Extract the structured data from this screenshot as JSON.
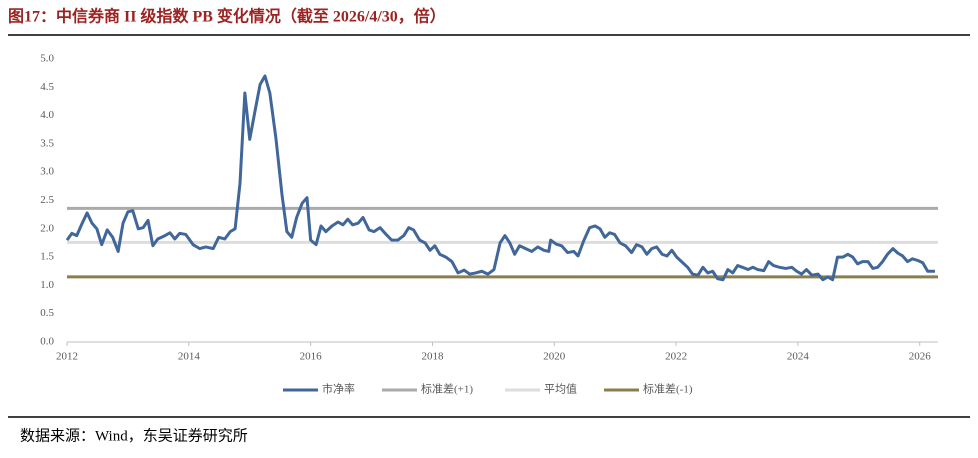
{
  "chart_data": {
    "type": "line",
    "title": "图17：中信券商 II 级指数 PB 变化情况（截至 2026/4/30，倍）",
    "xlim": [
      2012,
      2026.3
    ],
    "xticks": [
      2012,
      2014,
      2016,
      2018,
      2020,
      2022,
      2024,
      2026
    ],
    "ylim": [
      0,
      5
    ],
    "yticks": [
      {
        "value": 0,
        "label": "0.0"
      },
      {
        "value": 0.5,
        "label": "0.5"
      },
      {
        "value": 1,
        "label": "1.0"
      },
      {
        "value": 1.5,
        "label": "1.5"
      },
      {
        "value": 2,
        "label": "2.0"
      },
      {
        "value": 2.5,
        "label": "2.5"
      },
      {
        "value": 3,
        "label": "3.0"
      },
      {
        "value": 3.5,
        "label": "3.5"
      },
      {
        "value": 4,
        "label": "4.0"
      },
      {
        "value": 4.5,
        "label": "4.5"
      },
      {
        "value": 5,
        "label": "5.0"
      }
    ],
    "grid": false,
    "series": [
      {
        "name": "市净率",
        "color": "#41679a",
        "x": [
          2012.0,
          2012.08,
          2012.16,
          2012.25,
          2012.33,
          2012.41,
          2012.49,
          2012.57,
          2012.66,
          2012.75,
          2012.84,
          2012.92,
          2013.0,
          2013.08,
          2013.17,
          2013.25,
          2013.33,
          2013.41,
          2013.49,
          2013.61,
          2013.69,
          2013.77,
          2013.85,
          2013.95,
          2014.07,
          2014.18,
          2014.28,
          2014.4,
          2014.49,
          2014.59,
          2014.68,
          2014.76,
          2014.84,
          2014.92,
          2015.0,
          2015.09,
          2015.17,
          2015.25,
          2015.33,
          2015.43,
          2015.53,
          2015.61,
          2015.69,
          2015.77,
          2015.86,
          2015.94,
          2016.0,
          2016.09,
          2016.17,
          2016.25,
          2016.35,
          2016.45,
          2016.53,
          2016.61,
          2016.69,
          2016.78,
          2016.86,
          2016.96,
          2017.04,
          2017.14,
          2017.24,
          2017.33,
          2017.43,
          2017.53,
          2017.61,
          2017.69,
          2017.79,
          2017.88,
          2017.96,
          2018.04,
          2018.12,
          2018.22,
          2018.32,
          2018.42,
          2018.52,
          2018.61,
          2018.71,
          2018.81,
          2018.91,
          2019.01,
          2019.11,
          2019.19,
          2019.27,
          2019.35,
          2019.43,
          2019.53,
          2019.63,
          2019.73,
          2019.83,
          2019.91,
          2019.94,
          2020.03,
          2020.12,
          2020.22,
          2020.32,
          2020.39,
          2020.48,
          2020.58,
          2020.67,
          2020.75,
          2020.83,
          2020.91,
          2020.99,
          2021.08,
          2021.17,
          2021.27,
          2021.35,
          2021.44,
          2021.52,
          2021.6,
          2021.68,
          2021.77,
          2021.85,
          2021.93,
          2022.01,
          2022.09,
          2022.19,
          2022.27,
          2022.36,
          2022.44,
          2022.52,
          2022.6,
          2022.68,
          2022.77,
          2022.85,
          2022.93,
          2023.01,
          2023.09,
          2023.18,
          2023.26,
          2023.34,
          2023.44,
          2023.52,
          2023.6,
          2023.7,
          2023.8,
          2023.9,
          2023.98,
          2024.06,
          2024.14,
          2024.23,
          2024.33,
          2024.41,
          2024.49,
          2024.57,
          2024.65,
          2024.74,
          2024.82,
          2024.9,
          2024.98,
          2025.06,
          2025.15,
          2025.23,
          2025.31,
          2025.39,
          2025.47,
          2025.56,
          2025.64,
          2025.72,
          2025.8,
          2025.88,
          2025.97,
          2026.05,
          2026.13,
          2026.25
        ],
        "values": [
          1.8,
          1.92,
          1.88,
          2.1,
          2.28,
          2.1,
          2.0,
          1.72,
          1.98,
          1.85,
          1.6,
          2.1,
          2.3,
          2.32,
          2.0,
          2.02,
          2.15,
          1.7,
          1.82,
          1.88,
          1.93,
          1.82,
          1.92,
          1.9,
          1.72,
          1.65,
          1.68,
          1.65,
          1.85,
          1.82,
          1.95,
          2.0,
          2.8,
          4.4,
          3.58,
          4.1,
          4.55,
          4.7,
          4.4,
          3.6,
          2.6,
          1.95,
          1.85,
          2.2,
          2.45,
          2.55,
          1.8,
          1.72,
          2.05,
          1.95,
          2.05,
          2.12,
          2.07,
          2.17,
          2.07,
          2.1,
          2.2,
          1.98,
          1.95,
          2.02,
          1.9,
          1.8,
          1.8,
          1.88,
          2.02,
          1.98,
          1.8,
          1.75,
          1.62,
          1.7,
          1.55,
          1.5,
          1.42,
          1.22,
          1.27,
          1.2,
          1.22,
          1.25,
          1.2,
          1.28,
          1.75,
          1.88,
          1.75,
          1.55,
          1.7,
          1.65,
          1.6,
          1.68,
          1.62,
          1.6,
          1.8,
          1.73,
          1.7,
          1.58,
          1.6,
          1.52,
          1.78,
          2.02,
          2.05,
          2.0,
          1.85,
          1.93,
          1.9,
          1.75,
          1.7,
          1.58,
          1.72,
          1.68,
          1.55,
          1.65,
          1.68,
          1.55,
          1.52,
          1.62,
          1.5,
          1.42,
          1.32,
          1.2,
          1.18,
          1.32,
          1.22,
          1.25,
          1.12,
          1.1,
          1.28,
          1.22,
          1.35,
          1.32,
          1.28,
          1.32,
          1.28,
          1.26,
          1.42,
          1.35,
          1.32,
          1.3,
          1.32,
          1.25,
          1.2,
          1.28,
          1.18,
          1.2,
          1.1,
          1.15,
          1.1,
          1.5,
          1.5,
          1.55,
          1.5,
          1.38,
          1.42,
          1.42,
          1.3,
          1.32,
          1.42,
          1.55,
          1.65,
          1.57,
          1.52,
          1.42,
          1.47,
          1.44,
          1.4,
          1.25,
          1.25
        ]
      }
    ],
    "reference_lines": [
      {
        "name": "标准差(+1)",
        "color": "#aaaaaa",
        "value": 2.36
      },
      {
        "name": "平均值",
        "color": "#dddddd",
        "value": 1.76
      },
      {
        "name": "标准差(-1)",
        "color": "#8c7e4b",
        "value": 1.15
      }
    ]
  },
  "source": "数据来源：Wind，东吴证券研究所"
}
